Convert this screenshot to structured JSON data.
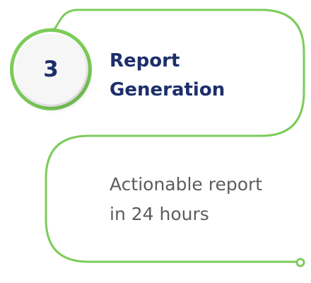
{
  "step": {
    "number": "3",
    "title_lines": [
      "Report",
      "Generation"
    ],
    "description_lines": [
      "Actionable report",
      "in 24 hours"
    ]
  },
  "colors": {
    "accent_green": "#7ccc5a",
    "title_navy": "#1d2e6b",
    "description_gray": "#5d5d5d",
    "badge_fill": "#f6f6f6"
  }
}
